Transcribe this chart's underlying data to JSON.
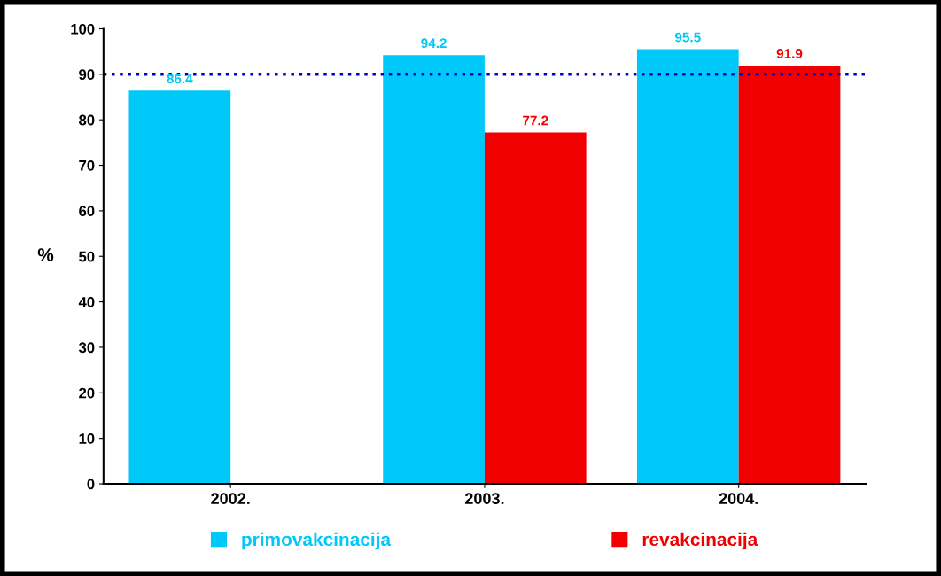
{
  "chart_data": {
    "type": "bar",
    "categories": [
      "2002.",
      "2003.",
      "2004."
    ],
    "ylabel": "%",
    "series": [
      {
        "name": "primovakcinacija",
        "color": "#00c8f8",
        "values": [
          86.4,
          94.2,
          95.5
        ]
      },
      {
        "name": "revakcinacija",
        "color": "#f00000",
        "values": [
          null,
          77.2,
          91.9
        ]
      }
    ],
    "ylim": [
      0,
      100
    ],
    "yticks": [
      0,
      10,
      20,
      30,
      40,
      50,
      60,
      70,
      80,
      90,
      100
    ],
    "ref_lines": [
      {
        "axis": "y",
        "value": 90,
        "color": "#0000cc",
        "line_style": "dotted"
      }
    ],
    "data_labels": true,
    "grid": false,
    "legend": "bottom"
  }
}
